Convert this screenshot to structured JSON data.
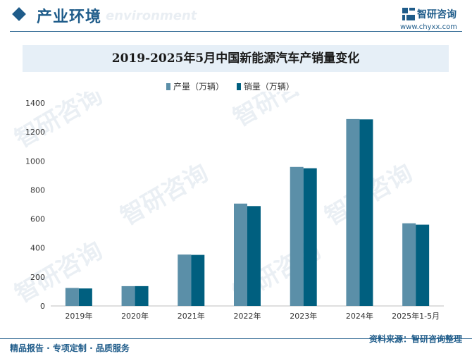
{
  "header": {
    "section_title": "产业环境",
    "section_subtitle_en": "environment",
    "brand_name": "智研咨询",
    "brand_url": "www.chyxx.com"
  },
  "footer": {
    "left_text": "精品报告 · 专项定制 · 品质服务",
    "source_text": "资料来源：智研咨询整理"
  },
  "watermark": {
    "text": "智研咨询"
  },
  "colors": {
    "primary": "#1f5c8a",
    "production": "#5b8fa8",
    "sales": "#005f7f",
    "title_band": "#e6eff7"
  },
  "chart_data": {
    "type": "bar",
    "title": "2019-2025年5月中国新能源汽车产销量变化",
    "categories": [
      "2019年",
      "2020年",
      "2021年",
      "2022年",
      "2023年",
      "2024年",
      "2025年1-5月"
    ],
    "series": [
      {
        "name": "产量（万辆）",
        "values": [
          124,
          136.6,
          354.5,
          705.8,
          958.7,
          1288.8,
          569.9
        ]
      },
      {
        "name": "销量（万辆）",
        "values": [
          120.6,
          136.7,
          352.1,
          688.7,
          949.5,
          1286.6,
          560.8
        ]
      }
    ],
    "ylim": [
      0,
      1400
    ],
    "yticks": [
      0,
      200,
      400,
      600,
      800,
      1000,
      1200,
      1400
    ],
    "grid": false,
    "legend_position": "top"
  }
}
